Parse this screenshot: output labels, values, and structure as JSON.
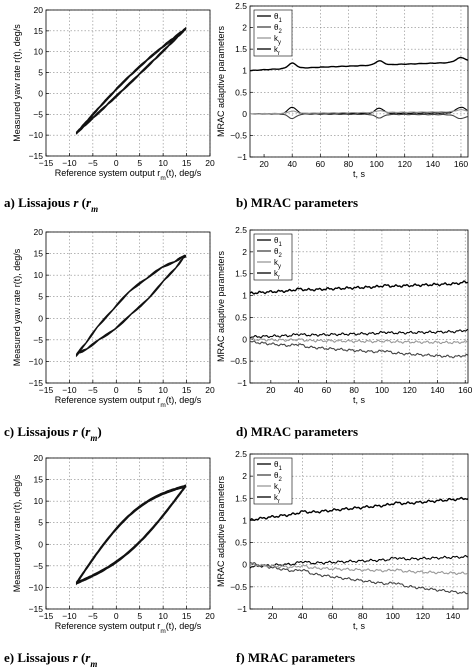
{
  "chart_data": [
    {
      "id": "a",
      "type": "line",
      "kind": "lissajous",
      "caption": "a) Lissajous r (rm)",
      "caption_parts": {
        "prefix": "a) Lissajous ",
        "r": "r",
        "paren_open": " (",
        "rm": "r",
        "rm_sub": "m",
        "paren_close": ""
      },
      "xlabel": "Reference system output r_m(t), deg/s",
      "xlabel_parts": {
        "pre": "Reference system output r",
        "sub": "m",
        "post": "(t), deg/s"
      },
      "ylabel": "Measured yaw rate r(t), deg/s",
      "xlim": [
        -15,
        20
      ],
      "ylim": [
        -15,
        20
      ],
      "xticks": [
        -15,
        -10,
        -5,
        0,
        5,
        10,
        15,
        20
      ],
      "yticks": [
        -15,
        -10,
        -5,
        0,
        5,
        10,
        15,
        20
      ],
      "xticklabels": [
        "−15",
        "−10",
        "−5",
        "0",
        "5",
        "10",
        "15",
        "20"
      ],
      "yticklabels": [
        "−15",
        "−10",
        "−5",
        "0",
        "5",
        "10",
        "15",
        "20"
      ],
      "grid": true,
      "x_range": [
        -8.5,
        14.8
      ],
      "y_start": -9.5,
      "y_end": 15.5,
      "loop_width": 0.9,
      "loops": 5
    },
    {
      "id": "b",
      "type": "line",
      "caption": "b) MRAC parameters",
      "xlabel": "t, s",
      "ylabel": "MRAC adaptive parameters",
      "xlim": [
        10,
        165
      ],
      "ylim": [
        -1,
        2.5
      ],
      "xticks": [
        20,
        40,
        60,
        80,
        100,
        120,
        140,
        160
      ],
      "yticks": [
        -1,
        -0.5,
        0,
        0.5,
        1,
        1.5,
        2,
        2.5
      ],
      "xticklabels": [
        "20",
        "40",
        "60",
        "80",
        "100",
        "120",
        "140",
        "160"
      ],
      "yticklabels": [
        "−1",
        "−0.5",
        "0",
        "0.5",
        "1",
        "1.5",
        "2",
        "2.5"
      ],
      "grid": true,
      "legend_position": "top-left",
      "series": [
        {
          "name": "θ1",
          "label_main": "θ",
          "label_sub": "1",
          "color": "#000000",
          "start": 0.0,
          "end": 0.02,
          "bumps": 0.15
        },
        {
          "name": "θ2",
          "label_main": "θ",
          "label_sub": "2",
          "color": "#444444",
          "start": 0.0,
          "end": -0.02,
          "bumps": -0.1
        },
        {
          "name": "ky",
          "label_main": "k",
          "label_sub": "y",
          "color": "#999999",
          "start": 0.0,
          "end": 0.05,
          "bumps": 0.05
        },
        {
          "name": "kr",
          "label_main": "k",
          "label_sub": "r",
          "color": "#000000",
          "start": 1.0,
          "end": 1.2,
          "bumps": 0.12
        }
      ]
    },
    {
      "id": "c",
      "type": "line",
      "kind": "lissajous",
      "caption": "c) Lissajous r (rm)",
      "caption_parts": {
        "prefix": "c) Lissajous ",
        "r": "r",
        "paren_open": " (",
        "rm": "r",
        "rm_sub": "m",
        "paren_close": ")"
      },
      "xlabel": "Reference system output r_m(t), deg/s",
      "xlabel_parts": {
        "pre": "Reference system output r",
        "sub": "m",
        "post": "(t), deg/s"
      },
      "ylabel": "Measured yaw rate r(t), deg/s",
      "xlim": [
        -15,
        20
      ],
      "ylim": [
        -15,
        20
      ],
      "xticks": [
        -15,
        -10,
        -5,
        0,
        5,
        10,
        15,
        20
      ],
      "yticks": [
        -15,
        -10,
        -5,
        0,
        5,
        10,
        15,
        20
      ],
      "xticklabels": [
        "−15",
        "−10",
        "−5",
        "0",
        "5",
        "10",
        "15",
        "20"
      ],
      "yticklabels": [
        "−15",
        "−10",
        "−5",
        "0",
        "5",
        "10",
        "15",
        "20"
      ],
      "grid": true,
      "x_range": [
        -8.5,
        14.8
      ],
      "y_start": -8.5,
      "y_end": 14.5,
      "loop_width": 2.8,
      "loops": 6
    },
    {
      "id": "d",
      "type": "line",
      "caption": "d) MRAC parameters",
      "xlabel": "t, s",
      "ylabel": "MRAC adaptive parameters",
      "xlim": [
        5,
        162
      ],
      "ylim": [
        -1,
        2.5
      ],
      "xticks": [
        20,
        40,
        60,
        80,
        100,
        120,
        140,
        160
      ],
      "yticks": [
        -1,
        -0.5,
        0,
        0.5,
        1,
        1.5,
        2,
        2.5
      ],
      "xticklabels": [
        "20",
        "40",
        "60",
        "80",
        "100",
        "120",
        "140",
        "160"
      ],
      "yticklabels": [
        "−1",
        "−0.5",
        "0",
        "0.5",
        "1",
        "1.5",
        "2",
        "2.5"
      ],
      "grid": true,
      "legend_position": "top-left",
      "series": [
        {
          "name": "θ1",
          "label_main": "θ",
          "label_sub": "1",
          "color": "#000000",
          "start": 0.05,
          "end": 0.18,
          "bumps": 0.03
        },
        {
          "name": "θ2",
          "label_main": "θ",
          "label_sub": "2",
          "color": "#444444",
          "start": -0.05,
          "end": -0.42,
          "bumps": 0.05
        },
        {
          "name": "ky",
          "label_main": "k",
          "label_sub": "y",
          "color": "#999999",
          "start": 0.0,
          "end": -0.08,
          "bumps": 0.02
        },
        {
          "name": "kr",
          "label_main": "k",
          "label_sub": "r",
          "color": "#000000",
          "start": 1.05,
          "end": 1.28,
          "bumps": 0.03
        }
      ]
    },
    {
      "id": "e",
      "type": "line",
      "kind": "lissajous",
      "caption": "e) Lissajous r (rm)",
      "caption_parts": {
        "prefix": "e) Lissajous ",
        "r": "r",
        "paren_open": " (",
        "rm": "r",
        "rm_sub": "m",
        "paren_close": ""
      },
      "xlabel": "Reference system output r_m(t), deg/s",
      "xlabel_parts": {
        "pre": "Reference system output r",
        "sub": "m",
        "post": "(t), deg/s"
      },
      "ylabel": "Measured yaw rate r(t), deg/s",
      "xlim": [
        -15,
        20
      ],
      "ylim": [
        -15,
        20
      ],
      "xticks": [
        -15,
        -10,
        -5,
        0,
        5,
        10,
        15,
        20
      ],
      "yticks": [
        -15,
        -10,
        -5,
        0,
        5,
        10,
        15,
        20
      ],
      "xticklabels": [
        "−15",
        "−10",
        "−5",
        "0",
        "5",
        "10",
        "15",
        "20"
      ],
      "yticklabels": [
        "−15",
        "−10",
        "−5",
        "0",
        "5",
        "10",
        "15",
        "20"
      ],
      "grid": true,
      "x_range": [
        -8.5,
        14.8
      ],
      "y_start": -9,
      "y_end": 13.5,
      "loop_width": 4.2,
      "loops": 7
    },
    {
      "id": "f",
      "type": "line",
      "caption": "f) MRAC parameters",
      "xlabel": "t, s",
      "ylabel": "MRAC adaptive parameters",
      "xlim": [
        5,
        150
      ],
      "ylim": [
        -1,
        2.5
      ],
      "xticks": [
        20,
        40,
        60,
        80,
        100,
        120,
        140
      ],
      "yticks": [
        -1,
        -0.5,
        0,
        0.5,
        1,
        1.5,
        2,
        2.5
      ],
      "xticklabels": [
        "20",
        "40",
        "60",
        "80",
        "100",
        "120",
        "140"
      ],
      "yticklabels": [
        "−1",
        "−0.5",
        "0",
        "0.5",
        "1",
        "1.5",
        "2",
        "2.5"
      ],
      "grid": true,
      "legend_position": "top-left",
      "series": [
        {
          "name": "θ1",
          "label_main": "θ",
          "label_sub": "1",
          "color": "#000000",
          "start": -0.05,
          "end": 0.18,
          "bumps": 0.05
        },
        {
          "name": "θ2",
          "label_main": "θ",
          "label_sub": "2",
          "color": "#444444",
          "start": 0.05,
          "end": -0.65,
          "bumps": 0.06
        },
        {
          "name": "ky",
          "label_main": "k",
          "label_sub": "y",
          "color": "#999999",
          "start": 0.0,
          "end": -0.2,
          "bumps": 0.04
        },
        {
          "name": "kr",
          "label_main": "k",
          "label_sub": "r",
          "color": "#000000",
          "start": 1.0,
          "end": 1.5,
          "bumps": 0.04
        }
      ]
    }
  ]
}
